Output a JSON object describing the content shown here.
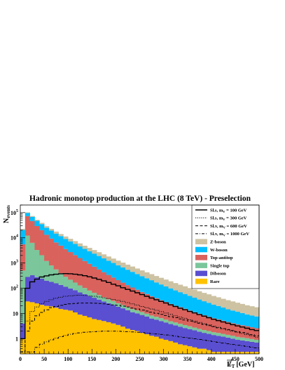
{
  "chart_data": {
    "type": "histogram",
    "title": "Hadronic monotop production at the LHC (8 TeV) - Preselection",
    "xlabel_main": "E",
    "xlabel_sub": "T",
    "xlabel_unit": "[GeV]",
    "ylabel_main": "N",
    "ylabel_sub": "events",
    "xlim": [
      0,
      500
    ],
    "ylim": [
      0.25,
      200000
    ],
    "y_scale": "log",
    "bin_width": 10,
    "x_ticks": [
      "0",
      "50",
      "100",
      "150",
      "200",
      "250",
      "300",
      "350",
      "400",
      "450",
      "500"
    ],
    "x_tick_values": [
      0,
      50,
      100,
      150,
      200,
      250,
      300,
      350,
      400,
      450,
      500
    ],
    "y_ticks": [
      {
        "value": 1,
        "base": "1",
        "exp": ""
      },
      {
        "value": 10,
        "base": "10",
        "exp": ""
      },
      {
        "value": 100,
        "base": "10",
        "exp": "2"
      },
      {
        "value": 1000,
        "base": "10",
        "exp": "3"
      },
      {
        "value": 10000,
        "base": "10",
        "exp": "4"
      },
      {
        "value": 100000,
        "base": "10",
        "exp": "5"
      }
    ],
    "stacked_series": [
      {
        "name": "Rare",
        "color": "#ffc200",
        "values": [
          1,
          30,
          28,
          25,
          22,
          20,
          19,
          17,
          15,
          14,
          13,
          11,
          9,
          8,
          7,
          6,
          5.5,
          5,
          4.5,
          4,
          3.5,
          3,
          2.5,
          2.2,
          2,
          1.7,
          1.5,
          1.3,
          1.2,
          1,
          0.9,
          0.8,
          0.7,
          0.6,
          0.55,
          0.5,
          0.45,
          0.4,
          0.4,
          0.35,
          0.3,
          0.3,
          0.3,
          0.3,
          0.3,
          0.3,
          0.3,
          0.3,
          0.3,
          0.3
        ]
      },
      {
        "name": "Diboson",
        "color": "#5a4fd1",
        "values": [
          3,
          250,
          300,
          250,
          220,
          180,
          160,
          140,
          120,
          100,
          85,
          72,
          60,
          50,
          42,
          36,
          30,
          25,
          21,
          18,
          15,
          13,
          11,
          9,
          8,
          7,
          6,
          5,
          4.5,
          4,
          3.5,
          3,
          2.7,
          2.4,
          2.1,
          1.9,
          1.7,
          1.5,
          1.3,
          1.2,
          1.1,
          1,
          0.9,
          0.8,
          0.7,
          0.6,
          0.55,
          0.5,
          0.45,
          0.4
        ]
      },
      {
        "name": "Single top",
        "color": "#7bc69b",
        "values": [
          500,
          12000,
          6000,
          3000,
          1800,
          1000,
          620,
          400,
          260,
          170,
          120,
          85,
          60,
          44,
          32,
          24,
          18,
          14,
          11,
          9,
          7,
          5.5,
          4.5,
          3.8,
          3.2,
          2.7,
          2.3,
          2,
          1.7,
          1.5,
          1.3,
          1.1,
          1,
          0.9,
          0.8,
          0.7,
          0.6,
          0.55,
          0.5,
          0.45,
          0.4,
          0.38,
          0.35,
          0.32,
          0.3,
          0.28,
          0.26,
          0.24,
          0.22,
          0.2
        ]
      },
      {
        "name": "Top-antitop",
        "color": "#d9625d",
        "values": [
          5000,
          60000,
          40000,
          26000,
          18000,
          12000,
          8500,
          6000,
          4500,
          3300,
          2500,
          1900,
          1450,
          1100,
          850,
          650,
          500,
          390,
          300,
          235,
          185,
          145,
          115,
          92,
          74,
          60,
          49,
          40,
          33,
          27,
          23,
          19,
          16,
          14,
          12,
          10,
          8.5,
          7.3,
          6.3,
          5.4,
          4.7,
          4.1,
          3.6,
          3.2,
          2.8,
          2.5,
          2.3,
          2.1,
          1.9,
          1.7
        ]
      },
      {
        "name": "W-boson",
        "color": "#00bfff",
        "values": [
          15000,
          25000,
          22000,
          18000,
          15000,
          12000,
          10000,
          8200,
          6800,
          5500,
          4500,
          3700,
          3000,
          2450,
          2000,
          1650,
          1350,
          1100,
          900,
          740,
          600,
          500,
          410,
          340,
          280,
          230,
          190,
          160,
          130,
          108,
          90,
          75,
          62,
          52,
          44,
          37,
          31,
          26,
          22,
          19,
          16,
          14,
          12,
          10,
          9,
          8,
          7,
          6,
          5.5,
          5
        ]
      },
      {
        "name": "Z-boson",
        "color": "#cdc2a2",
        "values": [
          2000,
          5000,
          5000,
          4600,
          4200,
          3700,
          3300,
          2900,
          2500,
          2200,
          1900,
          1650,
          1420,
          1220,
          1050,
          900,
          780,
          670,
          580,
          500,
          430,
          370,
          320,
          280,
          240,
          210,
          180,
          155,
          135,
          118,
          103,
          90,
          78,
          68,
          60,
          52,
          46,
          40,
          35,
          31,
          27,
          24,
          21,
          19,
          17,
          15,
          13.5,
          12,
          11,
          10
        ]
      }
    ],
    "signal_series": [
      {
        "name_prefix": "Sl.s, m",
        "name_sub": "V",
        "name_suffix": " = 100 GeV",
        "dash": "",
        "values": [
          1,
          100,
          180,
          230,
          280,
          310,
          340,
          360,
          375,
          380,
          375,
          360,
          340,
          315,
          285,
          255,
          225,
          195,
          170,
          145,
          125,
          105,
          90,
          77,
          66,
          56,
          48,
          41,
          35,
          30,
          26,
          22,
          19,
          16,
          14,
          12,
          10.5,
          9,
          7.8,
          6.8,
          5.9,
          5.2,
          4.6,
          4.1,
          3.6,
          3.2,
          2.9,
          2.6,
          2.3,
          2.1
        ]
      },
      {
        "name_prefix": "Sl.s, m",
        "name_sub": "V",
        "name_suffix": " = 300 GeV",
        "dash": "1.2,1.6",
        "values": [
          0.3,
          5,
          12,
          18,
          24,
          30,
          35,
          40,
          44,
          48,
          50,
          52,
          53,
          52,
          50,
          48,
          45,
          42,
          39,
          36,
          33,
          30,
          27,
          24,
          21.5,
          19,
          17,
          15,
          13.3,
          11.8,
          10.4,
          9.2,
          8.1,
          7.2,
          6.4,
          5.6,
          5,
          4.4,
          3.9,
          3.5,
          3.1,
          2.8,
          2.5,
          2.2,
          2,
          1.8,
          1.6,
          1.45,
          1.3,
          1.15
        ]
      },
      {
        "name_prefix": "Sl.v, m",
        "name_sub": "V",
        "name_suffix": " = 600 GeV",
        "dash": "4,2.5",
        "values": [
          0.3,
          2,
          5,
          8,
          11,
          14,
          17,
          19,
          21,
          23,
          24,
          25,
          26,
          26,
          26,
          25.5,
          25,
          24,
          23,
          22,
          21,
          19.5,
          18,
          16.5,
          15,
          13.7,
          12.5,
          11.3,
          10.2,
          9.2,
          8.3,
          7.5,
          6.8,
          6.1,
          5.5,
          5,
          4.5,
          4.1,
          3.7,
          3.3,
          3,
          2.7,
          2.5,
          2.3,
          2.1,
          1.9,
          1.75,
          1.6,
          1.45,
          1.3
        ]
      },
      {
        "name_prefix": "Sl.v, m",
        "name_sub": "V",
        "name_suffix": " = 1000 GeV",
        "dash": "4,2,1,2",
        "values": [
          0.3,
          0.3,
          0.3,
          0.45,
          0.6,
          0.75,
          0.9,
          1.05,
          1.2,
          1.35,
          1.5,
          1.6,
          1.7,
          1.8,
          1.85,
          1.9,
          1.95,
          2,
          2,
          2,
          1.98,
          1.95,
          1.9,
          1.85,
          1.8,
          1.74,
          1.68,
          1.61,
          1.54,
          1.47,
          1.4,
          1.33,
          1.26,
          1.19,
          1.12,
          1.05,
          0.99,
          0.93,
          0.87,
          0.82,
          0.77,
          0.72,
          0.67,
          0.63,
          0.59,
          0.55,
          0.52,
          0.49,
          0.46,
          0.43
        ]
      }
    ],
    "legend": {
      "placement": "top-right",
      "signals": [
        {
          "prefix": "Sl.s, m",
          "sub": "V",
          "suffix": " = 100 GeV",
          "dash": ""
        },
        {
          "prefix": "Sl.s, m",
          "sub": "V",
          "suffix": " = 300 GeV",
          "dash": "1.2,1.6"
        },
        {
          "prefix": "Sl.v, m",
          "sub": "V",
          "suffix": " = 600 GeV",
          "dash": "4,2.5"
        },
        {
          "prefix": "Sl.v, m",
          "sub": "V",
          "suffix": " = 1000 GeV",
          "dash": "4,2,1,2"
        }
      ],
      "backgrounds": [
        {
          "label": "Z-boson",
          "color": "#cdc2a2"
        },
        {
          "label": "W-boson",
          "color": "#00bfff"
        },
        {
          "label": "Top-antitop",
          "color": "#d9625d"
        },
        {
          "label": "Single top",
          "color": "#7bc69b"
        },
        {
          "label": "Diboson",
          "color": "#5a4fd1"
        },
        {
          "label": "Rare",
          "color": "#ffc200"
        }
      ]
    }
  }
}
